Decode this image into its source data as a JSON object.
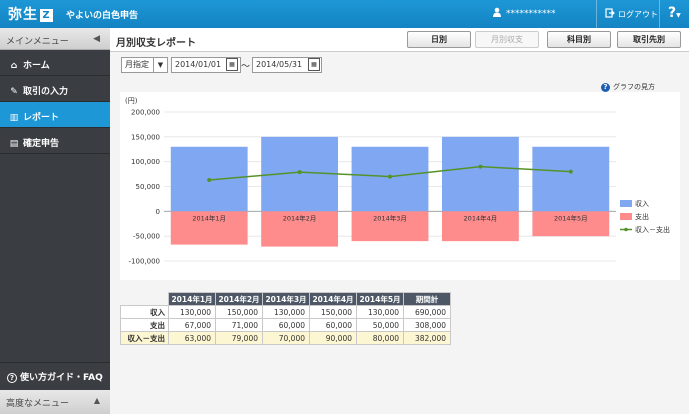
{
  "header": {
    "logo": "弥生",
    "logo_mark": "Z",
    "app_title": "やよいの白色申告",
    "user_name": "***********",
    "logout_label": "ログアウト",
    "help_label": "?"
  },
  "sidebar": {
    "title": "メインメニュー",
    "items": [
      {
        "label": "ホーム",
        "icon": "home-icon"
      },
      {
        "label": "取引の入力",
        "icon": "pencil-icon"
      },
      {
        "label": "レポート",
        "icon": "report-icon"
      },
      {
        "label": "確定申告",
        "icon": "document-icon"
      }
    ],
    "guide_label": "使い方ガイド・FAQ",
    "advanced_label": "高度なメニュー"
  },
  "main": {
    "title": "月別収支レポート",
    "tabs": [
      {
        "label": "日別",
        "disabled": false
      },
      {
        "label": "月別収支",
        "disabled": true
      },
      {
        "label": "科目別",
        "disabled": false
      },
      {
        "label": "取引先別",
        "disabled": false
      }
    ],
    "period_select": "月指定",
    "date_from": "2014/01/01",
    "date_to": "2014/05/31",
    "range_separator": "～",
    "graph_help": "グラフの見方"
  },
  "chart_data": {
    "type": "bar",
    "ylabel": "(円)",
    "ylim": [
      -100000,
      200000
    ],
    "yticks": [
      200000,
      150000,
      100000,
      50000,
      0,
      -50000,
      -100000
    ],
    "ytick_labels": [
      "200,000",
      "150,000",
      "100,000",
      "50,000",
      "0",
      "-50,000",
      "-100,000"
    ],
    "categories": [
      "2014年1月",
      "2014年2月",
      "2014年3月",
      "2014年4月",
      "2014年5月"
    ],
    "series": [
      {
        "name": "収入",
        "type": "bar",
        "color": "#7fa7f2",
        "values": [
          130000,
          150000,
          130000,
          150000,
          130000
        ]
      },
      {
        "name": "支出",
        "type": "bar",
        "color": "#ff8c8c",
        "values": [
          -67000,
          -71000,
          -60000,
          -60000,
          -50000
        ]
      },
      {
        "name": "収入－支出",
        "type": "line",
        "color": "#55932a",
        "values": [
          63000,
          79000,
          70000,
          90000,
          80000
        ]
      }
    ],
    "legend_position": "right"
  },
  "summary_table": {
    "columns": [
      "2014年1月",
      "2014年2月",
      "2014年3月",
      "2014年4月",
      "2014年5月",
      "期間計"
    ],
    "rows": [
      {
        "label": "収入",
        "values": [
          "130,000",
          "150,000",
          "130,000",
          "150,000",
          "130,000",
          "690,000"
        ]
      },
      {
        "label": "支出",
        "values": [
          "67,000",
          "71,000",
          "60,000",
          "60,000",
          "50,000",
          "308,000"
        ]
      },
      {
        "label": "収入－支出",
        "values": [
          "63,000",
          "79,000",
          "70,000",
          "90,000",
          "80,000",
          "382,000"
        ]
      }
    ]
  }
}
